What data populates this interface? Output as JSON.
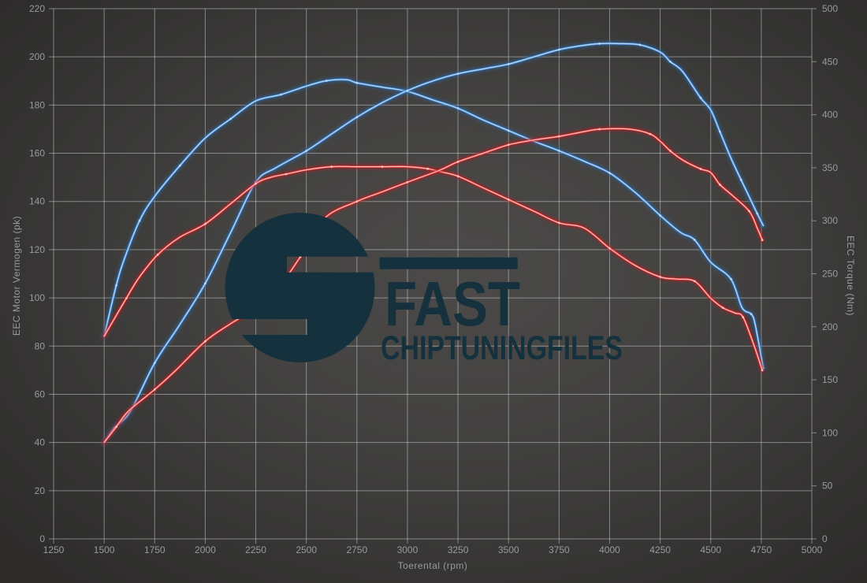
{
  "logo": {
    "brand": "FAST",
    "subtitle": "CHIPTUNINGFILES",
    "color": "#15313d"
  },
  "colors": {
    "blue_glow": "#2b67ab",
    "blue_mid": "#4e93d9",
    "blue_core": "#bcdaf8",
    "red_glow": "#b71c1c",
    "red_mid": "#e23b3b",
    "red_core": "#ffc6c6",
    "grid": "rgba(216,216,216,0.5)",
    "tick_text": "#9a9a9a"
  },
  "chart_data": {
    "type": "line",
    "title": "",
    "xlabel": "Toerental (rpm)",
    "ylabel_left": "EEC Motor Vermogen (pk)",
    "ylabel_right": "EEC Torque (Nm)",
    "x_range": [
      1250,
      5000
    ],
    "y_left_range": [
      0,
      220
    ],
    "y_right_range": [
      0,
      500
    ],
    "x_ticks": [
      1250,
      1500,
      1750,
      2000,
      2250,
      2500,
      2750,
      3000,
      3250,
      3500,
      3750,
      4000,
      4250,
      4500,
      4750,
      5000
    ],
    "y_left_ticks": [
      0,
      20,
      40,
      60,
      80,
      100,
      120,
      140,
      160,
      180,
      200,
      220
    ],
    "y_right_ticks": [
      0,
      50,
      100,
      150,
      200,
      250,
      300,
      350,
      400,
      450,
      500
    ],
    "grid": true,
    "legend": "none",
    "series": [
      {
        "name": "blue_torque_nm",
        "axis": "right",
        "unit": "Nm",
        "color": "blue",
        "points": [
          [
            1500,
            191
          ],
          [
            1560,
            239
          ],
          [
            1600,
            264
          ],
          [
            1675,
            300
          ],
          [
            1750,
            323
          ],
          [
            1875,
            352
          ],
          [
            2000,
            378
          ],
          [
            2125,
            396
          ],
          [
            2250,
            413
          ],
          [
            2375,
            419
          ],
          [
            2500,
            427
          ],
          [
            2600,
            432
          ],
          [
            2700,
            433
          ],
          [
            2750,
            430
          ],
          [
            2875,
            426
          ],
          [
            3000,
            422
          ],
          [
            3125,
            414
          ],
          [
            3250,
            406
          ],
          [
            3375,
            395
          ],
          [
            3500,
            385
          ],
          [
            3625,
            375
          ],
          [
            3750,
            366
          ],
          [
            3875,
            356
          ],
          [
            4000,
            345
          ],
          [
            4125,
            327
          ],
          [
            4250,
            305
          ],
          [
            4350,
            289
          ],
          [
            4420,
            282
          ],
          [
            4500,
            261
          ],
          [
            4600,
            245
          ],
          [
            4655,
            218
          ],
          [
            4700,
            212
          ],
          [
            4720,
            202
          ],
          [
            4760,
            161
          ]
        ]
      },
      {
        "name": "blue_power_pk",
        "axis": "left",
        "unit": "pk",
        "color": "blue",
        "points": [
          [
            1500,
            40
          ],
          [
            1550,
            46
          ],
          [
            1630,
            53
          ],
          [
            1750,
            73
          ],
          [
            1875,
            89
          ],
          [
            2000,
            106
          ],
          [
            2125,
            127
          ],
          [
            2250,
            148
          ],
          [
            2350,
            154
          ],
          [
            2500,
            161
          ],
          [
            2625,
            168
          ],
          [
            2750,
            175
          ],
          [
            2875,
            181
          ],
          [
            3000,
            186
          ],
          [
            3125,
            190
          ],
          [
            3250,
            193
          ],
          [
            3375,
            195
          ],
          [
            3500,
            197
          ],
          [
            3625,
            200
          ],
          [
            3750,
            203
          ],
          [
            3850,
            204.5
          ],
          [
            3950,
            205.5
          ],
          [
            4050,
            205.5
          ],
          [
            4150,
            205
          ],
          [
            4250,
            202
          ],
          [
            4300,
            198
          ],
          [
            4360,
            194
          ],
          [
            4450,
            183
          ],
          [
            4500,
            178
          ],
          [
            4545,
            169
          ],
          [
            4600,
            158
          ],
          [
            4650,
            149
          ],
          [
            4690,
            142
          ],
          [
            4730,
            135
          ],
          [
            4760,
            130
          ]
        ]
      },
      {
        "name": "red_torque_nm",
        "axis": "right",
        "unit": "Nm",
        "color": "red",
        "points": [
          [
            1500,
            191
          ],
          [
            1610,
            227
          ],
          [
            1675,
            247
          ],
          [
            1765,
            268
          ],
          [
            1870,
            284
          ],
          [
            2000,
            297
          ],
          [
            2125,
            316
          ],
          [
            2250,
            335
          ],
          [
            2325,
            341
          ],
          [
            2400,
            344
          ],
          [
            2500,
            348
          ],
          [
            2625,
            351
          ],
          [
            2750,
            351
          ],
          [
            2875,
            351
          ],
          [
            3000,
            351
          ],
          [
            3100,
            349
          ],
          [
            3170,
            346
          ],
          [
            3250,
            342
          ],
          [
            3375,
            331
          ],
          [
            3500,
            320
          ],
          [
            3625,
            309
          ],
          [
            3750,
            298
          ],
          [
            3875,
            293
          ],
          [
            4000,
            274
          ],
          [
            4125,
            258
          ],
          [
            4250,
            247
          ],
          [
            4330,
            245
          ],
          [
            4420,
            243
          ],
          [
            4500,
            227
          ],
          [
            4560,
            218
          ],
          [
            4620,
            213
          ],
          [
            4660,
            209
          ],
          [
            4715,
            182
          ],
          [
            4755,
            159
          ]
        ]
      },
      {
        "name": "red_power_pk",
        "axis": "left",
        "unit": "pk",
        "color": "red",
        "points": [
          [
            1500,
            40
          ],
          [
            1560,
            46.5
          ],
          [
            1620,
            53
          ],
          [
            1750,
            62
          ],
          [
            1855,
            70
          ],
          [
            2000,
            82
          ],
          [
            2120,
            89
          ],
          [
            2235,
            95
          ],
          [
            2350,
            103
          ],
          [
            2470,
            117
          ],
          [
            2590,
            133
          ],
          [
            2750,
            140
          ],
          [
            2875,
            144
          ],
          [
            3000,
            148
          ],
          [
            3160,
            153
          ],
          [
            3250,
            156.5
          ],
          [
            3375,
            160
          ],
          [
            3500,
            163.5
          ],
          [
            3625,
            165.5
          ],
          [
            3750,
            167
          ],
          [
            3875,
            169
          ],
          [
            3950,
            170
          ],
          [
            4100,
            170
          ],
          [
            4200,
            168
          ],
          [
            4250,
            165
          ],
          [
            4300,
            161
          ],
          [
            4365,
            157
          ],
          [
            4450,
            153.5
          ],
          [
            4500,
            152
          ],
          [
            4545,
            147
          ],
          [
            4600,
            143
          ],
          [
            4690,
            136
          ],
          [
            4730,
            129
          ],
          [
            4755,
            124
          ]
        ]
      }
    ]
  }
}
